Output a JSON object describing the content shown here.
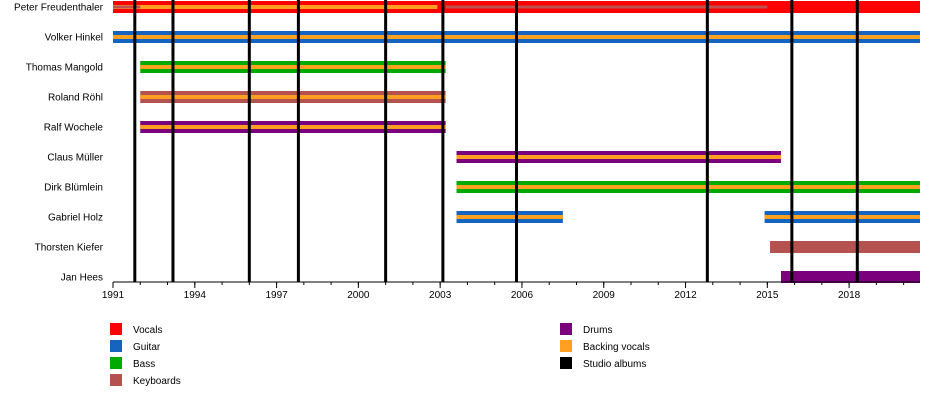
{
  "chart_data": {
    "type": "timeline",
    "xlim": [
      1991.0,
      2020.6
    ],
    "ticks": [
      {
        "value": 1991,
        "label": "1991"
      },
      {
        "value": 1994,
        "label": "1994"
      },
      {
        "value": 1997,
        "label": "1997"
      },
      {
        "value": 2000,
        "label": "2000"
      },
      {
        "value": 2003,
        "label": "2003"
      },
      {
        "value": 2006,
        "label": "2006"
      },
      {
        "value": 2009,
        "label": "2009"
      },
      {
        "value": 2012,
        "label": "2012"
      },
      {
        "value": 2015,
        "label": "2015"
      },
      {
        "value": 2018,
        "label": "2018"
      }
    ],
    "roles": {
      "vocals": {
        "label": "Vocals",
        "color": "#ff0000"
      },
      "guitar": {
        "label": "Guitar",
        "color": "#1565c0"
      },
      "bass": {
        "label": "Bass",
        "color": "#00aa00"
      },
      "keyboards": {
        "label": "Keyboards",
        "color": "#b5514f"
      },
      "drums": {
        "label": "Drums",
        "color": "#7b007b"
      },
      "backing_vocals": {
        "label": "Backing vocals",
        "color": "#ffa020"
      },
      "albums": {
        "label": "Studio albums",
        "color": "#000000"
      }
    },
    "albums": [
      1991.8,
      1993.2,
      1996.0,
      1997.8,
      2001.0,
      2003.1,
      2005.8,
      2012.8,
      2015.9,
      2018.3
    ],
    "members": [
      {
        "name": "Peter Freudenthaler",
        "bars": [
          {
            "start": 1991.0,
            "end": 2020.6,
            "role": "vocals",
            "secondary": null
          },
          {
            "start": 1991.0,
            "end": 2002.9,
            "role": "vocals",
            "secondary": "backing_vocals"
          }
        ],
        "notes": [
          {
            "start": 1991.0,
            "end": 1992.0
          },
          {
            "start": 2003.2,
            "end": 2015.0
          }
        ]
      },
      {
        "name": "Volker Hinkel",
        "bars": [
          {
            "start": 1991.0,
            "end": 2001.0,
            "role": "guitar",
            "secondary": "backing_vocals"
          },
          {
            "start": 2001.0,
            "end": 2020.6,
            "role": "guitar",
            "secondary": "backing_vocals"
          }
        ]
      },
      {
        "name": "Thomas Mangold",
        "bars": [
          {
            "start": 1992.0,
            "end": 2003.2,
            "role": "bass",
            "secondary": "backing_vocals"
          }
        ]
      },
      {
        "name": "Roland Röhl",
        "bars": [
          {
            "start": 1992.0,
            "end": 2003.2,
            "role": "keyboards",
            "secondary": "backing_vocals"
          }
        ]
      },
      {
        "name": "Ralf Wochele",
        "bars": [
          {
            "start": 1992.0,
            "end": 2003.2,
            "role": "drums",
            "secondary": "backing_vocals"
          }
        ]
      },
      {
        "name": "Claus Müller",
        "bars": [
          {
            "start": 2003.6,
            "end": 2015.5,
            "role": "drums",
            "secondary": "backing_vocals"
          }
        ]
      },
      {
        "name": "Dirk Blümlein",
        "bars": [
          {
            "start": 2003.6,
            "end": 2020.6,
            "role": "bass",
            "secondary": "backing_vocals"
          }
        ]
      },
      {
        "name": "Gabriel Holz",
        "bars": [
          {
            "start": 2003.6,
            "end": 2007.5,
            "role": "guitar",
            "secondary": "backing_vocals"
          },
          {
            "start": 2014.9,
            "end": 2020.6,
            "role": "guitar",
            "secondary": "backing_vocals"
          }
        ]
      },
      {
        "name": "Thorsten Kiefer",
        "bars": [
          {
            "start": 2015.1,
            "end": 2020.6,
            "role": "keyboards",
            "secondary": null
          }
        ]
      },
      {
        "name": "Jan Hees",
        "bars": [
          {
            "start": 2015.5,
            "end": 2020.6,
            "role": "drums",
            "secondary": null
          }
        ]
      }
    ],
    "legend": [
      {
        "role": "vocals",
        "column": 0
      },
      {
        "role": "guitar",
        "column": 0
      },
      {
        "role": "bass",
        "column": 0
      },
      {
        "role": "keyboards",
        "column": 0
      },
      {
        "role": "drums",
        "column": 1
      },
      {
        "role": "backing_vocals",
        "column": 1
      },
      {
        "role": "albums",
        "column": 1
      }
    ]
  }
}
